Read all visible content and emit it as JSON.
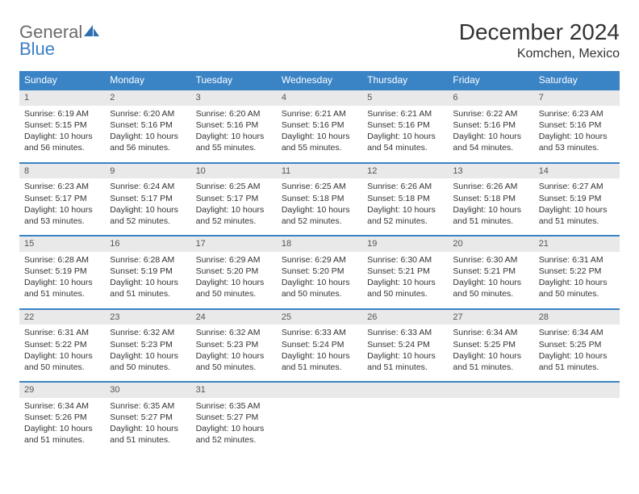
{
  "logo": {
    "word1": "General",
    "word2": "Blue"
  },
  "title": "December 2024",
  "location": "Komchen, Mexico",
  "colors": {
    "header_bg": "#3a84c6",
    "header_text": "#ffffff",
    "daynum_bg": "#e9e9e9",
    "row_border": "#3a84c6",
    "logo_gray": "#6b6b6b",
    "logo_blue": "#3a7fc4",
    "page_bg": "#ffffff",
    "text": "#333333"
  },
  "fonts": {
    "title_size_pt": 21,
    "location_size_pt": 12,
    "header_size_pt": 9,
    "cell_size_pt": 8
  },
  "dayNames": [
    "Sunday",
    "Monday",
    "Tuesday",
    "Wednesday",
    "Thursday",
    "Friday",
    "Saturday"
  ],
  "labels": {
    "sunrise": "Sunrise:",
    "sunset": "Sunset:",
    "daylight": "Daylight:"
  },
  "weeks": [
    [
      {
        "n": "1",
        "sunrise": "6:19 AM",
        "sunset": "5:15 PM",
        "daylight": "10 hours and 56 minutes."
      },
      {
        "n": "2",
        "sunrise": "6:20 AM",
        "sunset": "5:16 PM",
        "daylight": "10 hours and 56 minutes."
      },
      {
        "n": "3",
        "sunrise": "6:20 AM",
        "sunset": "5:16 PM",
        "daylight": "10 hours and 55 minutes."
      },
      {
        "n": "4",
        "sunrise": "6:21 AM",
        "sunset": "5:16 PM",
        "daylight": "10 hours and 55 minutes."
      },
      {
        "n": "5",
        "sunrise": "6:21 AM",
        "sunset": "5:16 PM",
        "daylight": "10 hours and 54 minutes."
      },
      {
        "n": "6",
        "sunrise": "6:22 AM",
        "sunset": "5:16 PM",
        "daylight": "10 hours and 54 minutes."
      },
      {
        "n": "7",
        "sunrise": "6:23 AM",
        "sunset": "5:16 PM",
        "daylight": "10 hours and 53 minutes."
      }
    ],
    [
      {
        "n": "8",
        "sunrise": "6:23 AM",
        "sunset": "5:17 PM",
        "daylight": "10 hours and 53 minutes."
      },
      {
        "n": "9",
        "sunrise": "6:24 AM",
        "sunset": "5:17 PM",
        "daylight": "10 hours and 52 minutes."
      },
      {
        "n": "10",
        "sunrise": "6:25 AM",
        "sunset": "5:17 PM",
        "daylight": "10 hours and 52 minutes."
      },
      {
        "n": "11",
        "sunrise": "6:25 AM",
        "sunset": "5:18 PM",
        "daylight": "10 hours and 52 minutes."
      },
      {
        "n": "12",
        "sunrise": "6:26 AM",
        "sunset": "5:18 PM",
        "daylight": "10 hours and 52 minutes."
      },
      {
        "n": "13",
        "sunrise": "6:26 AM",
        "sunset": "5:18 PM",
        "daylight": "10 hours and 51 minutes."
      },
      {
        "n": "14",
        "sunrise": "6:27 AM",
        "sunset": "5:19 PM",
        "daylight": "10 hours and 51 minutes."
      }
    ],
    [
      {
        "n": "15",
        "sunrise": "6:28 AM",
        "sunset": "5:19 PM",
        "daylight": "10 hours and 51 minutes."
      },
      {
        "n": "16",
        "sunrise": "6:28 AM",
        "sunset": "5:19 PM",
        "daylight": "10 hours and 51 minutes."
      },
      {
        "n": "17",
        "sunrise": "6:29 AM",
        "sunset": "5:20 PM",
        "daylight": "10 hours and 50 minutes."
      },
      {
        "n": "18",
        "sunrise": "6:29 AM",
        "sunset": "5:20 PM",
        "daylight": "10 hours and 50 minutes."
      },
      {
        "n": "19",
        "sunrise": "6:30 AM",
        "sunset": "5:21 PM",
        "daylight": "10 hours and 50 minutes."
      },
      {
        "n": "20",
        "sunrise": "6:30 AM",
        "sunset": "5:21 PM",
        "daylight": "10 hours and 50 minutes."
      },
      {
        "n": "21",
        "sunrise": "6:31 AM",
        "sunset": "5:22 PM",
        "daylight": "10 hours and 50 minutes."
      }
    ],
    [
      {
        "n": "22",
        "sunrise": "6:31 AM",
        "sunset": "5:22 PM",
        "daylight": "10 hours and 50 minutes."
      },
      {
        "n": "23",
        "sunrise": "6:32 AM",
        "sunset": "5:23 PM",
        "daylight": "10 hours and 50 minutes."
      },
      {
        "n": "24",
        "sunrise": "6:32 AM",
        "sunset": "5:23 PM",
        "daylight": "10 hours and 50 minutes."
      },
      {
        "n": "25",
        "sunrise": "6:33 AM",
        "sunset": "5:24 PM",
        "daylight": "10 hours and 51 minutes."
      },
      {
        "n": "26",
        "sunrise": "6:33 AM",
        "sunset": "5:24 PM",
        "daylight": "10 hours and 51 minutes."
      },
      {
        "n": "27",
        "sunrise": "6:34 AM",
        "sunset": "5:25 PM",
        "daylight": "10 hours and 51 minutes."
      },
      {
        "n": "28",
        "sunrise": "6:34 AM",
        "sunset": "5:25 PM",
        "daylight": "10 hours and 51 minutes."
      }
    ],
    [
      {
        "n": "29",
        "sunrise": "6:34 AM",
        "sunset": "5:26 PM",
        "daylight": "10 hours and 51 minutes."
      },
      {
        "n": "30",
        "sunrise": "6:35 AM",
        "sunset": "5:27 PM",
        "daylight": "10 hours and 51 minutes."
      },
      {
        "n": "31",
        "sunrise": "6:35 AM",
        "sunset": "5:27 PM",
        "daylight": "10 hours and 52 minutes."
      },
      null,
      null,
      null,
      null
    ]
  ]
}
